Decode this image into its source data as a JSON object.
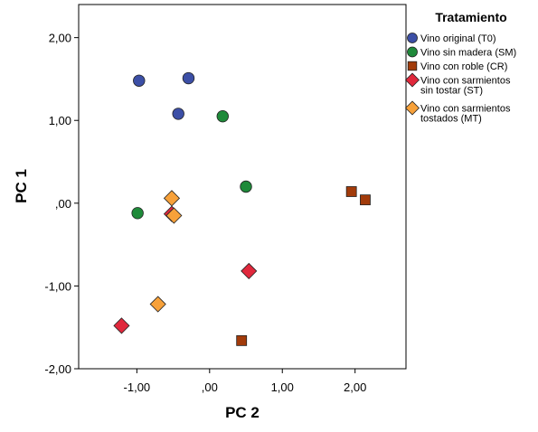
{
  "chart_data": {
    "type": "scatter",
    "xlabel": "PC 2",
    "ylabel": "PC 1",
    "xlim": [
      -1.8,
      2.7
    ],
    "ylim": [
      -2.0,
      2.4
    ],
    "grid": false,
    "legend_position": "right",
    "xticks": [
      -1.0,
      0.0,
      1.0,
      2.0
    ],
    "xtick_labels": [
      "-1,00",
      ",00",
      "1,00",
      "2,00"
    ],
    "yticks": [
      -2.0,
      -1.0,
      0.0,
      1.0,
      2.0
    ],
    "ytick_labels": [
      "-2,00",
      "-1,00",
      ",00",
      "1,00",
      "2,00"
    ],
    "legend_title": "Tratamiento",
    "series": [
      {
        "name": "Vino original (T0)",
        "marker": "circle",
        "color": "#3c4fa6",
        "points": [
          [
            -0.97,
            1.48
          ],
          [
            -0.29,
            1.51
          ],
          [
            -0.43,
            1.08
          ]
        ]
      },
      {
        "name": "Vino sin madera (SM)",
        "marker": "circle",
        "color": "#1f8a3a",
        "points": [
          [
            0.18,
            1.05
          ],
          [
            0.5,
            0.2
          ],
          [
            -0.99,
            -0.12
          ]
        ]
      },
      {
        "name": "Vino con roble (CR)",
        "marker": "square",
        "color": "#a23b0a",
        "points": [
          [
            1.95,
            0.14
          ],
          [
            2.14,
            0.04
          ],
          [
            0.44,
            -1.66
          ]
        ]
      },
      {
        "name": "Vino con sarmientos sin tostar (ST)",
        "label_lines": [
          "Vino con sarmientos",
          "sin tostar (ST)"
        ],
        "marker": "diamond",
        "color": "#e0283c",
        "points": [
          [
            -0.52,
            -0.13
          ],
          [
            0.54,
            -0.82
          ],
          [
            -1.21,
            -1.48
          ]
        ]
      },
      {
        "name": "Vino con sarmientos tostados (MT)",
        "label_lines": [
          "Vino con sarmientos",
          "tostados (MT)"
        ],
        "marker": "diamond",
        "color": "#f7a13a",
        "points": [
          [
            -0.52,
            0.06
          ],
          [
            -0.49,
            -0.15
          ],
          [
            -0.71,
            -1.22
          ]
        ]
      }
    ]
  }
}
